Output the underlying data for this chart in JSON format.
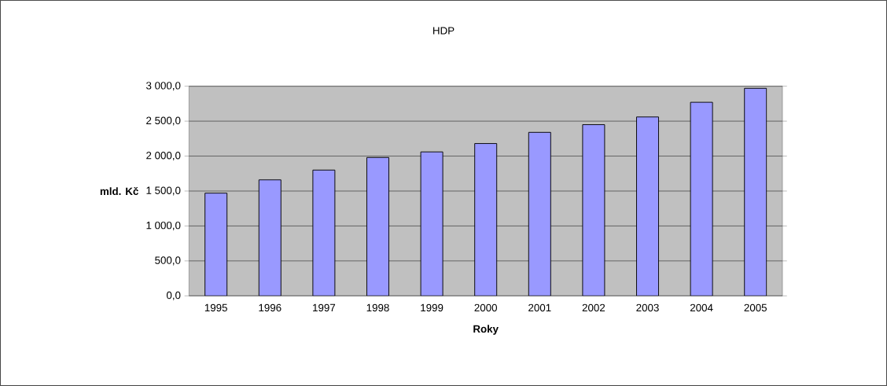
{
  "chart_data": {
    "type": "bar",
    "title": "HDP",
    "xlabel": "Roky",
    "ylabel": "mld. Kč",
    "categories": [
      "1995",
      "1996",
      "1997",
      "1998",
      "1999",
      "2000",
      "2001",
      "2002",
      "2003",
      "2004",
      "2005"
    ],
    "values": [
      1470,
      1660,
      1800,
      1980,
      2060,
      2180,
      2340,
      2450,
      2560,
      2770,
      2970
    ],
    "color": "#9999ff",
    "ylim": [
      0,
      3000
    ],
    "yticks": [
      {
        "value": 0,
        "label": "0,0"
      },
      {
        "value": 500,
        "label": "500,0"
      },
      {
        "value": 1000,
        "label": "1 000,0"
      },
      {
        "value": 1500,
        "label": "1 500,0"
      },
      {
        "value": 2000,
        "label": "2 000,0"
      },
      {
        "value": 2500,
        "label": "2 500,0"
      },
      {
        "value": 3000,
        "label": "3 000,0"
      }
    ],
    "grid": "y"
  }
}
